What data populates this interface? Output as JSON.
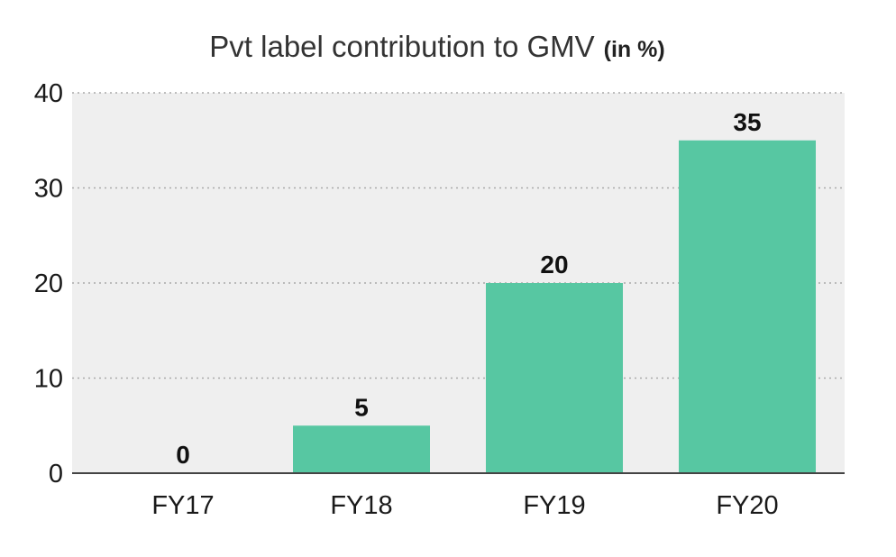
{
  "chart_data": {
    "type": "bar",
    "title": "Pvt label contribution to GMV",
    "title_suffix": "(in %)",
    "categories": [
      "FY17",
      "FY18",
      "FY19",
      "FY20"
    ],
    "values": [
      0,
      5,
      20,
      35
    ],
    "data_labels": [
      "0",
      "5",
      "20",
      "35"
    ],
    "xlabel": "",
    "ylabel": "",
    "ylim": [
      0,
      40
    ],
    "yticks": [
      0,
      10,
      20,
      30,
      40
    ],
    "grid": true,
    "legend": "none",
    "colors": {
      "bar": "#57c7a2",
      "plot_background": "#efefef",
      "gridline": "#a9a9a9"
    }
  }
}
